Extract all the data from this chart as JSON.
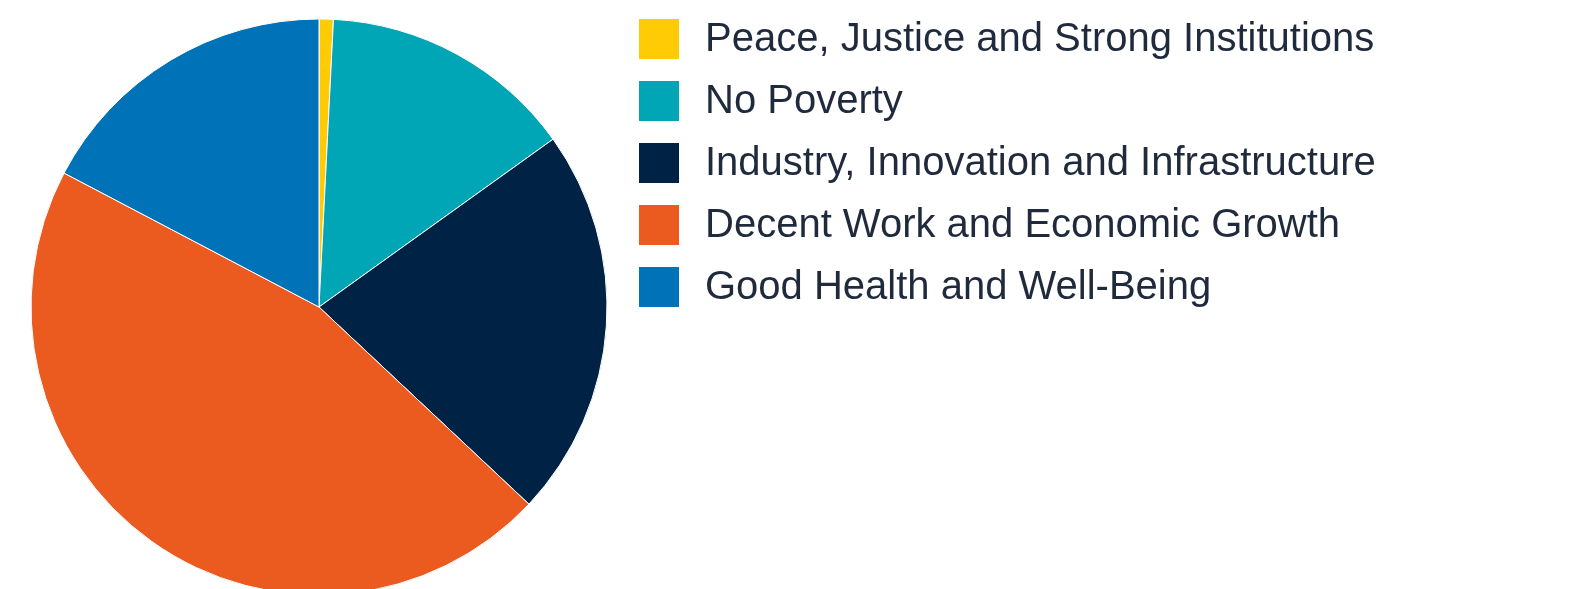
{
  "chart_data": {
    "type": "pie",
    "categories": [
      "Peace, Justice and Strong Institutions",
      "No Poverty",
      "Industry, Innovation and Infrastructure",
      "Decent Work and Economic Growth",
      "Good Health and Well-Being"
    ],
    "values": [
      0.8,
      14.3,
      21.9,
      45.7,
      17.3
    ],
    "colors": [
      "#ffcb05",
      "#00a6b6",
      "#002345",
      "#eb5b1f",
      "#0073b8"
    ],
    "legend": "top right"
  }
}
